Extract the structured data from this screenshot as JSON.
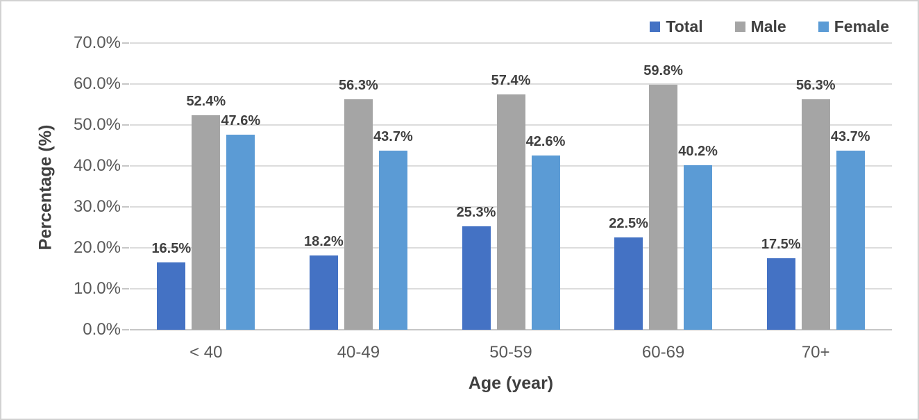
{
  "chart_data": {
    "type": "bar",
    "title": "",
    "categories": [
      "< 40",
      "40-49",
      "50-59",
      "60-69",
      "70+"
    ],
    "series": [
      {
        "name": "Total",
        "color": "#4472C4",
        "values": [
          16.5,
          18.2,
          25.3,
          22.5,
          17.5
        ]
      },
      {
        "name": "Male",
        "color": "#A5A5A5",
        "values": [
          52.4,
          56.3,
          57.4,
          59.8,
          56.3
        ]
      },
      {
        "name": "Female",
        "color": "#5B9BD5",
        "values": [
          47.6,
          43.7,
          42.6,
          40.2,
          43.7
        ]
      }
    ],
    "data_labels": [
      [
        "16.5%",
        "18.2%",
        "25.3%",
        "22.5%",
        "17.5%"
      ],
      [
        "52.4%",
        "56.3%",
        "57.4%",
        "59.8%",
        "56.3%"
      ],
      [
        "47.6%",
        "43.7%",
        "42.6%",
        "40.2%",
        "43.7%"
      ]
    ],
    "xlabel": "Age (year)",
    "ylabel": "Percentage (%)",
    "ylim": [
      0,
      70
    ],
    "ytick_step": 10,
    "ytick_labels": [
      "0.0%",
      "10.0%",
      "20.0%",
      "30.0%",
      "40.0%",
      "50.0%",
      "60.0%",
      "70.0%"
    ],
    "grid": true,
    "legend_position": "top-right"
  },
  "colors": {
    "gridline": "#dcdcdc",
    "axis_line": "#c6c6c6",
    "tick_label": "#595959",
    "data_label": "#404040",
    "axis_title": "#3f3f3f",
    "frame_border": "#d2d2d2",
    "background": "#ffffff"
  }
}
